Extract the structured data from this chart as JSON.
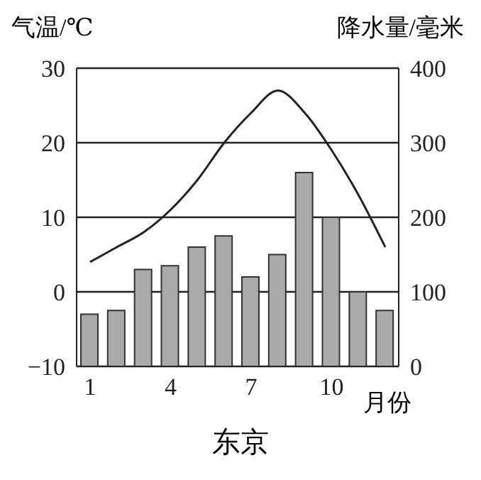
{
  "chart_data": {
    "type": "bar",
    "title": "东京",
    "xlabel": "月份",
    "ylabel": "气温/℃",
    "y2label": "降水量/毫米",
    "categories": [
      "1",
      null,
      null,
      "4",
      null,
      null,
      "7",
      null,
      null,
      "10",
      null,
      null
    ],
    "series": [
      {
        "axis": "y2",
        "color": "#aaaaaa",
        "values": [
          70,
          75,
          130,
          135,
          160,
          175,
          120,
          150,
          260,
          200,
          100,
          75
        ]
      },
      {
        "type": "line",
        "axis": "y",
        "color": "#222222",
        "values": [
          4,
          6,
          8,
          11,
          15,
          20,
          24,
          27,
          24,
          19,
          13,
          6
        ]
      }
    ],
    "ylim": [
      -10,
      30
    ],
    "yticks": [
      -10,
      0,
      10,
      20,
      30
    ],
    "y2lim": [
      0,
      400
    ],
    "y2ticks": [
      0,
      100,
      200,
      300,
      400
    ],
    "grid": "y",
    "marker": "none",
    "line_style": "solid"
  }
}
